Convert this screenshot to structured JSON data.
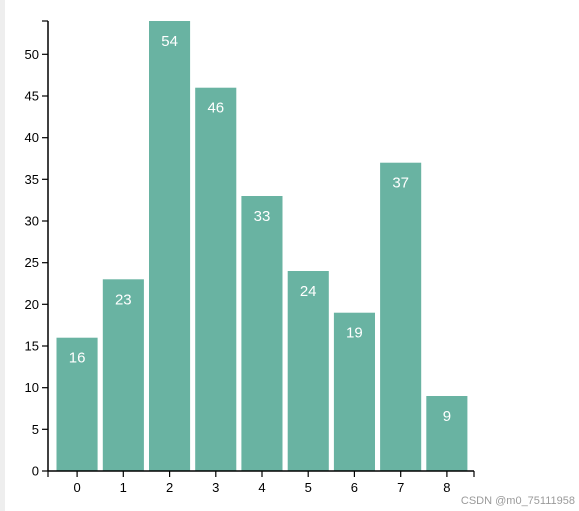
{
  "chart_data": {
    "type": "bar",
    "categories": [
      "0",
      "1",
      "2",
      "3",
      "4",
      "5",
      "6",
      "7",
      "8"
    ],
    "values": [
      16,
      23,
      54,
      46,
      33,
      24,
      19,
      37,
      9
    ],
    "title": "",
    "xlabel": "",
    "ylabel": "",
    "ylim": [
      0,
      54
    ],
    "yticks": [
      0,
      5,
      10,
      15,
      20,
      25,
      30,
      35,
      40,
      45,
      50
    ],
    "grid": false,
    "legend": "none",
    "data_labels": true,
    "colors": {
      "bar": "#69b3a2",
      "label": "#ffffff",
      "axis": "#000000"
    }
  },
  "watermark": "CSDN @m0_75111958"
}
